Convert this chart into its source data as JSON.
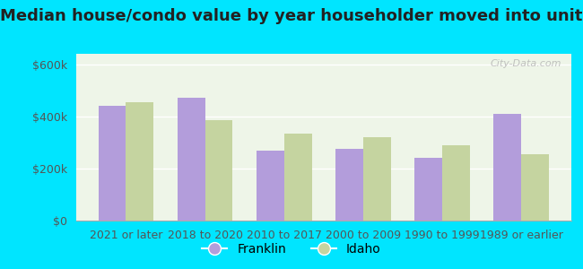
{
  "title": "Median house/condo value by year householder moved into unit",
  "categories": [
    "2021 or later",
    "2018 to 2020",
    "2010 to 2017",
    "2000 to 2009",
    "1990 to 1999",
    "1989 or earlier"
  ],
  "franklin_values": [
    440000,
    470000,
    270000,
    275000,
    240000,
    410000
  ],
  "idaho_values": [
    455000,
    385000,
    335000,
    320000,
    290000,
    255000
  ],
  "franklin_color": "#b39ddb",
  "idaho_color": "#c5d4a0",
  "background_outer": "#00e5ff",
  "background_inner": "#eef5e8",
  "yticks": [
    0,
    200000,
    400000,
    600000
  ],
  "ylim": [
    0,
    640000
  ],
  "watermark": "City-Data.com",
  "legend_franklin": "Franklin",
  "legend_idaho": "Idaho",
  "title_fontsize": 13,
  "tick_fontsize": 9,
  "legend_fontsize": 10,
  "bar_width": 0.35
}
